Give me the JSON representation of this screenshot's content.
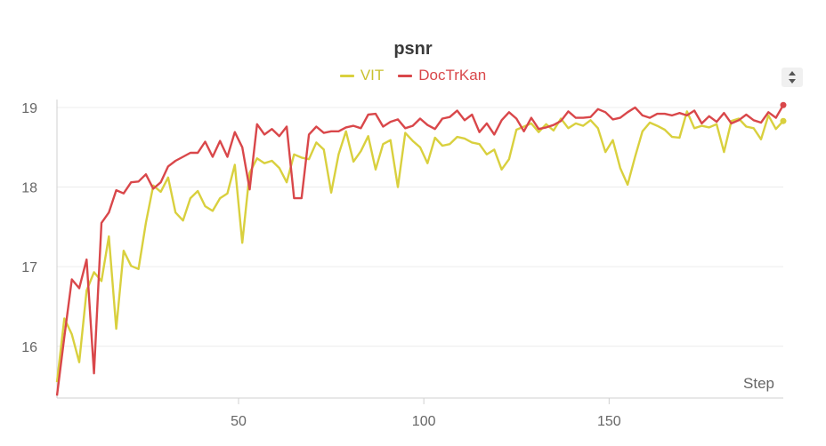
{
  "chart_data": {
    "type": "line",
    "title": "psnr",
    "xlabel": "Step",
    "ylabel": "",
    "xlim": [
      1,
      197
    ],
    "ylim": [
      15.35,
      19.1
    ],
    "x_ticks": [
      50,
      100,
      150
    ],
    "y_ticks": [
      16,
      17,
      18,
      19
    ],
    "grid": true,
    "legend_position": "top-center",
    "series": [
      {
        "name": "VIT",
        "color": "#d9d03e",
        "points": [
          [
            1,
            15.55
          ],
          [
            3,
            16.35
          ],
          [
            5,
            16.15
          ],
          [
            7,
            15.8
          ],
          [
            9,
            16.7
          ],
          [
            11,
            16.93
          ],
          [
            13,
            16.82
          ],
          [
            15,
            17.38
          ],
          [
            17,
            16.22
          ],
          [
            19,
            17.2
          ],
          [
            21,
            17.01
          ],
          [
            23,
            16.97
          ],
          [
            25,
            17.55
          ],
          [
            27,
            18.02
          ],
          [
            29,
            17.94
          ],
          [
            31,
            18.12
          ],
          [
            33,
            17.68
          ],
          [
            35,
            17.58
          ],
          [
            37,
            17.86
          ],
          [
            39,
            17.95
          ],
          [
            41,
            17.76
          ],
          [
            43,
            17.7
          ],
          [
            45,
            17.86
          ],
          [
            47,
            17.92
          ],
          [
            49,
            18.28
          ],
          [
            51,
            17.3
          ],
          [
            53,
            18.18
          ],
          [
            55,
            18.36
          ],
          [
            57,
            18.3
          ],
          [
            59,
            18.33
          ],
          [
            61,
            18.24
          ],
          [
            63,
            18.06
          ],
          [
            65,
            18.41
          ],
          [
            67,
            18.37
          ],
          [
            69,
            18.35
          ],
          [
            71,
            18.56
          ],
          [
            73,
            18.47
          ],
          [
            75,
            17.93
          ],
          [
            77,
            18.41
          ],
          [
            79,
            18.7
          ],
          [
            81,
            18.32
          ],
          [
            83,
            18.45
          ],
          [
            85,
            18.64
          ],
          [
            87,
            18.22
          ],
          [
            89,
            18.54
          ],
          [
            91,
            18.59
          ],
          [
            93,
            18.0
          ],
          [
            95,
            18.68
          ],
          [
            97,
            18.58
          ],
          [
            99,
            18.5
          ],
          [
            101,
            18.3
          ],
          [
            103,
            18.62
          ],
          [
            105,
            18.52
          ],
          [
            107,
            18.54
          ],
          [
            109,
            18.63
          ],
          [
            111,
            18.61
          ],
          [
            113,
            18.56
          ],
          [
            115,
            18.54
          ],
          [
            117,
            18.41
          ],
          [
            119,
            18.47
          ],
          [
            121,
            18.22
          ],
          [
            123,
            18.35
          ],
          [
            125,
            18.72
          ],
          [
            127,
            18.76
          ],
          [
            129,
            18.8
          ],
          [
            131,
            18.69
          ],
          [
            133,
            18.79
          ],
          [
            135,
            18.71
          ],
          [
            137,
            18.86
          ],
          [
            139,
            18.74
          ],
          [
            141,
            18.8
          ],
          [
            143,
            18.77
          ],
          [
            145,
            18.84
          ],
          [
            147,
            18.74
          ],
          [
            149,
            18.44
          ],
          [
            151,
            18.59
          ],
          [
            153,
            18.24
          ],
          [
            155,
            18.03
          ],
          [
            157,
            18.38
          ],
          [
            159,
            18.7
          ],
          [
            161,
            18.81
          ],
          [
            163,
            18.77
          ],
          [
            165,
            18.72
          ],
          [
            167,
            18.63
          ],
          [
            169,
            18.62
          ],
          [
            171,
            18.95
          ],
          [
            173,
            18.74
          ],
          [
            175,
            18.77
          ],
          [
            177,
            18.75
          ],
          [
            179,
            18.79
          ],
          [
            181,
            18.44
          ],
          [
            183,
            18.83
          ],
          [
            185,
            18.86
          ],
          [
            187,
            18.76
          ],
          [
            189,
            18.74
          ],
          [
            191,
            18.6
          ],
          [
            193,
            18.9
          ],
          [
            195,
            18.73
          ],
          [
            197,
            18.83
          ]
        ]
      },
      {
        "name": "DocTrKan",
        "color": "#d9474a",
        "points": [
          [
            1,
            15.38
          ],
          [
            3,
            16.12
          ],
          [
            5,
            16.84
          ],
          [
            7,
            16.73
          ],
          [
            9,
            17.09
          ],
          [
            11,
            15.66
          ],
          [
            13,
            17.55
          ],
          [
            15,
            17.68
          ],
          [
            17,
            17.96
          ],
          [
            19,
            17.92
          ],
          [
            21,
            18.06
          ],
          [
            23,
            18.07
          ],
          [
            25,
            18.16
          ],
          [
            27,
            17.98
          ],
          [
            29,
            18.06
          ],
          [
            31,
            18.26
          ],
          [
            33,
            18.33
          ],
          [
            35,
            18.38
          ],
          [
            37,
            18.43
          ],
          [
            39,
            18.43
          ],
          [
            41,
            18.57
          ],
          [
            43,
            18.38
          ],
          [
            45,
            18.58
          ],
          [
            47,
            18.38
          ],
          [
            49,
            18.69
          ],
          [
            51,
            18.5
          ],
          [
            53,
            17.97
          ],
          [
            55,
            18.79
          ],
          [
            57,
            18.66
          ],
          [
            59,
            18.73
          ],
          [
            61,
            18.64
          ],
          [
            63,
            18.76
          ],
          [
            65,
            17.86
          ],
          [
            67,
            17.86
          ],
          [
            69,
            18.66
          ],
          [
            71,
            18.76
          ],
          [
            73,
            18.68
          ],
          [
            75,
            18.7
          ],
          [
            77,
            18.7
          ],
          [
            79,
            18.75
          ],
          [
            81,
            18.77
          ],
          [
            83,
            18.74
          ],
          [
            85,
            18.91
          ],
          [
            87,
            18.92
          ],
          [
            89,
            18.76
          ],
          [
            91,
            18.82
          ],
          [
            93,
            18.85
          ],
          [
            95,
            18.74
          ],
          [
            97,
            18.77
          ],
          [
            99,
            18.86
          ],
          [
            101,
            18.78
          ],
          [
            103,
            18.73
          ],
          [
            105,
            18.86
          ],
          [
            107,
            18.88
          ],
          [
            109,
            18.96
          ],
          [
            111,
            18.84
          ],
          [
            113,
            18.91
          ],
          [
            115,
            18.69
          ],
          [
            117,
            18.8
          ],
          [
            119,
            18.66
          ],
          [
            121,
            18.84
          ],
          [
            123,
            18.94
          ],
          [
            125,
            18.86
          ],
          [
            127,
            18.7
          ],
          [
            129,
            18.87
          ],
          [
            131,
            18.73
          ],
          [
            133,
            18.75
          ],
          [
            135,
            18.78
          ],
          [
            137,
            18.83
          ],
          [
            139,
            18.95
          ],
          [
            141,
            18.87
          ],
          [
            143,
            18.87
          ],
          [
            145,
            18.88
          ],
          [
            147,
            18.98
          ],
          [
            149,
            18.94
          ],
          [
            151,
            18.85
          ],
          [
            153,
            18.87
          ],
          [
            155,
            18.94
          ],
          [
            157,
            19.0
          ],
          [
            159,
            18.9
          ],
          [
            161,
            18.87
          ],
          [
            163,
            18.92
          ],
          [
            165,
            18.92
          ],
          [
            167,
            18.9
          ],
          [
            169,
            18.93
          ],
          [
            171,
            18.9
          ],
          [
            173,
            18.96
          ],
          [
            175,
            18.8
          ],
          [
            177,
            18.89
          ],
          [
            179,
            18.82
          ],
          [
            181,
            18.93
          ],
          [
            183,
            18.8
          ],
          [
            185,
            18.84
          ],
          [
            187,
            18.91
          ],
          [
            189,
            18.84
          ],
          [
            191,
            18.81
          ],
          [
            193,
            18.94
          ],
          [
            195,
            18.87
          ],
          [
            197,
            19.03
          ]
        ]
      }
    ]
  }
}
